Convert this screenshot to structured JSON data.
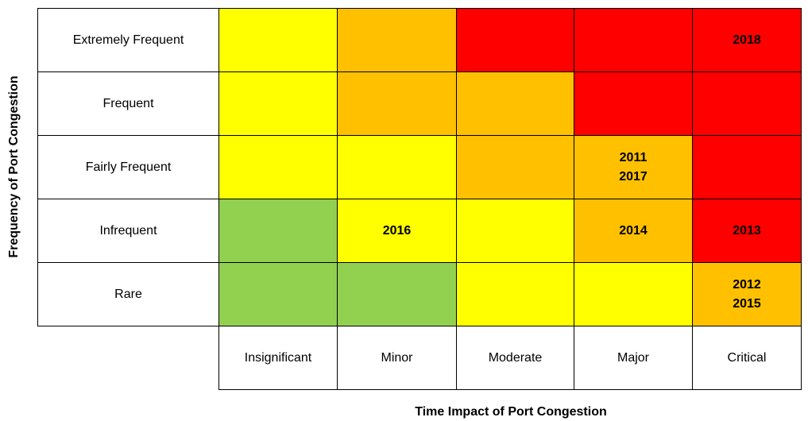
{
  "matrix": {
    "y_axis_title": "Frequency of Port Congestion",
    "x_axis_title": "Time Impact of Port Congestion",
    "columns": [
      "Insignificant",
      "Minor",
      "Moderate",
      "Major",
      "Critical"
    ],
    "rows": [
      {
        "label": "Extremely Frequent",
        "cells": [
          {
            "color": "#ffff00"
          },
          {
            "color": "#ffc000"
          },
          {
            "color": "#ff0000"
          },
          {
            "color": "#ff0000"
          },
          {
            "color": "#ff0000",
            "labels": [
              "2018"
            ]
          }
        ]
      },
      {
        "label": "Frequent",
        "cells": [
          {
            "color": "#ffff00"
          },
          {
            "color": "#ffc000"
          },
          {
            "color": "#ffc000"
          },
          {
            "color": "#ff0000"
          },
          {
            "color": "#ff0000"
          }
        ]
      },
      {
        "label": "Fairly Frequent",
        "cells": [
          {
            "color": "#ffff00"
          },
          {
            "color": "#ffff00"
          },
          {
            "color": "#ffc000"
          },
          {
            "color": "#ffc000",
            "labels": [
              "2011",
              "2017"
            ]
          },
          {
            "color": "#ff0000"
          }
        ]
      },
      {
        "label": "Infrequent",
        "cells": [
          {
            "color": "#92d050"
          },
          {
            "color": "#ffff00",
            "labels": [
              "2016"
            ]
          },
          {
            "color": "#ffff00"
          },
          {
            "color": "#ffc000",
            "labels": [
              "2014"
            ]
          },
          {
            "color": "#ff0000",
            "labels": [
              "2013"
            ]
          }
        ]
      },
      {
        "label": "Rare",
        "cells": [
          {
            "color": "#92d050"
          },
          {
            "color": "#92d050"
          },
          {
            "color": "#ffff00"
          },
          {
            "color": "#ffff00"
          },
          {
            "color": "#ffc000",
            "labels": [
              "2012",
              "2015"
            ]
          }
        ]
      }
    ]
  }
}
